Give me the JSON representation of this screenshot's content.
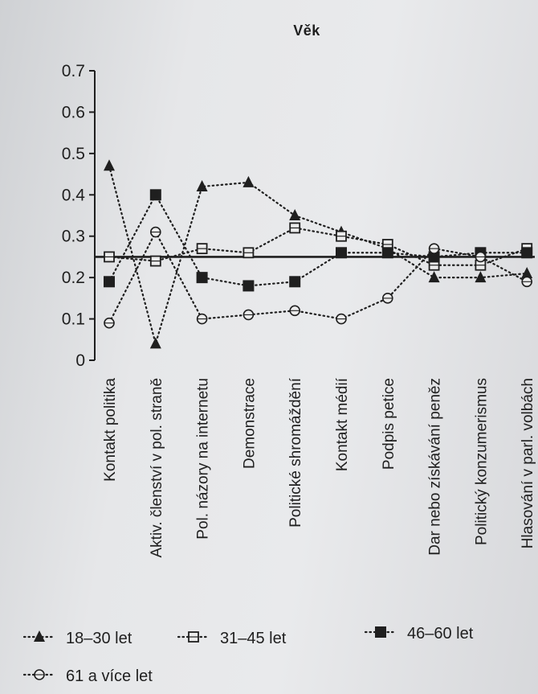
{
  "chart_data": {
    "type": "line",
    "title": "Věk",
    "xlabel": "",
    "ylabel": "",
    "ylim": [
      0,
      0.7
    ],
    "yticks": [
      "0",
      "0.1",
      "0.2",
      "0.3",
      "0.4",
      "0.5",
      "0.6",
      "0.7"
    ],
    "reference_line": 0.25,
    "categories": [
      "Kontakt politika",
      "Aktiv. členství v pol. straně",
      "Pol. názory na internetu",
      "Demonstrace",
      "Politické shromáždění",
      "Kontakt médií",
      "Podpis petice",
      "Dar nebo získávání peněz",
      "Politický konzumerismus",
      "Hlasování v parl. volbách"
    ],
    "series": [
      {
        "name": "18–30 let",
        "marker": "triangle-filled",
        "values": [
          0.47,
          0.04,
          0.42,
          0.43,
          0.35,
          0.31,
          0.27,
          0.2,
          0.2,
          0.21
        ]
      },
      {
        "name": "31–45 let",
        "marker": "square-open",
        "values": [
          0.25,
          0.24,
          0.27,
          0.26,
          0.32,
          0.3,
          0.28,
          0.23,
          0.23,
          0.27
        ]
      },
      {
        "name": "46–60 let",
        "marker": "square-filled",
        "values": [
          0.19,
          0.4,
          0.2,
          0.18,
          0.19,
          0.26,
          0.26,
          0.25,
          0.26,
          0.26
        ]
      },
      {
        "name": "61 a více let",
        "marker": "circle-open",
        "values": [
          0.09,
          0.31,
          0.1,
          0.11,
          0.12,
          0.1,
          0.15,
          0.27,
          0.25,
          0.19
        ]
      }
    ],
    "grid": false,
    "legend_position": "bottom"
  },
  "colors": {
    "ink": "#1f1f1f"
  }
}
